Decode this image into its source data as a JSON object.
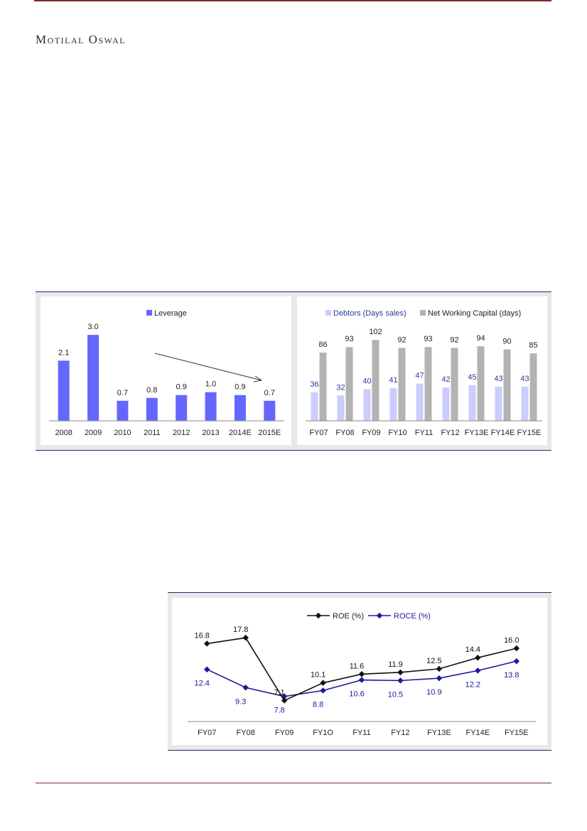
{
  "brand": "Motilal Oswal",
  "chart_data": [
    {
      "type": "bar",
      "categories": [
        "2008",
        "2009",
        "2010",
        "2011",
        "2012",
        "2013",
        "2014E",
        "2015E"
      ],
      "series": [
        {
          "name": "Leverage",
          "values": [
            2.1,
            3.0,
            0.7,
            0.8,
            0.9,
            1.0,
            0.9,
            0.7
          ]
        }
      ],
      "value_labels": [
        "2.1",
        "3.0",
        "0.7",
        "0.8",
        "0.9",
        "1.0",
        "0.9",
        "0.7"
      ],
      "ylim": [
        0,
        3.3
      ],
      "legend": "top-center",
      "colors": {
        "Leverage": "#6666ff"
      },
      "annotation": "downward trend arrow"
    },
    {
      "type": "bar",
      "categories": [
        "FY07",
        "FY08",
        "FY09",
        "FY10",
        "FY11",
        "FY12",
        "FY13E",
        "FY14E",
        "FY15E"
      ],
      "series": [
        {
          "name": "Debtors (Days sales)",
          "values": [
            36,
            32,
            40,
            41,
            47,
            42,
            45,
            43,
            43
          ]
        },
        {
          "name": "Net Working Capital (days)",
          "values": [
            86,
            93,
            102,
            92,
            93,
            92,
            94,
            90,
            85
          ]
        }
      ],
      "ylim": [
        0,
        112
      ],
      "legend": "top-center",
      "colors": {
        "Debtors (Days sales)": "#ccccff",
        "Net Working Capital (days)": "#b3b3b3",
        "debtor_labels": "#2a3a9a"
      }
    },
    {
      "type": "line",
      "categories": [
        "FY07",
        "FY08",
        "FY09",
        "FY1O",
        "FY11",
        "FY12",
        "FY13E",
        "FY14E",
        "FY15E"
      ],
      "series": [
        {
          "name": "ROE (%)",
          "values": [
            16.8,
            17.8,
            7.1,
            10.1,
            11.6,
            11.9,
            12.5,
            14.4,
            16.0
          ]
        },
        {
          "name": "ROCE (%)",
          "values": [
            12.4,
            9.3,
            7.8,
            8.8,
            10.6,
            10.5,
            10.9,
            12.2,
            13.8
          ]
        }
      ],
      "ylim": [
        4,
        20
      ],
      "legend": "top-center",
      "colors": {
        "ROE (%)": "#111111",
        "ROCE (%)": "#1a1a9c"
      }
    }
  ]
}
